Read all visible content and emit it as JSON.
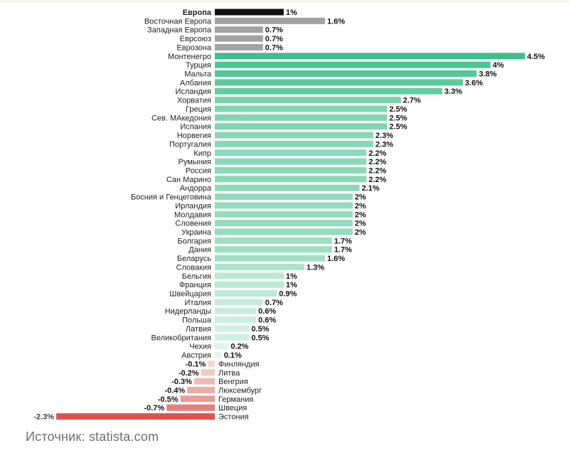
{
  "chart_data": {
    "type": "bar",
    "orientation": "horizontal",
    "categories": [
      "Европа",
      "Восточная Европа",
      "Западная Европа",
      "Еврсоюз",
      "Еврозона",
      "Монтенегро",
      "Турция",
      "Мальта",
      "Албания",
      "Исландия",
      "Хорватия",
      "Греция",
      "Сев. МАкедония",
      "Испания",
      "Норвегия",
      "Португалия",
      "Кипр",
      "Румыния",
      "Россия",
      "Сан Марино",
      "Андорра",
      "Босния и Генцеговина",
      "Ирландия",
      "Молдавия",
      "Словения",
      "Украина",
      "Болгария",
      "Дания",
      "Беларусь",
      "Словакия",
      "Бельгия",
      "Франция",
      "Швейцария",
      "Италия",
      "Нидерланды",
      "Польша",
      "Латвия",
      "Великобритания",
      "Чехия",
      "Австрия",
      "Финляндия",
      "Литва",
      "Венгрия",
      "Люксембург",
      "Германия",
      "Швеция",
      "Эстония"
    ],
    "values": [
      1,
      1.6,
      0.7,
      0.7,
      0.7,
      4.5,
      4,
      3.8,
      3.6,
      3.3,
      2.7,
      2.5,
      2.5,
      2.5,
      2.3,
      2.3,
      2.2,
      2.2,
      2.2,
      2.2,
      2.1,
      2,
      2,
      2,
      2,
      2,
      1.7,
      1.7,
      1.6,
      1.3,
      1,
      1,
      0.9,
      0.7,
      0.6,
      0.6,
      0.5,
      0.5,
      0.2,
      0.1,
      -0.1,
      -0.2,
      -0.3,
      -0.4,
      -0.5,
      -0.7,
      -2.3
    ],
    "value_labels": [
      "1%",
      "1.6%",
      "0.7%",
      "0.7%",
      "0.7%",
      "4.5%",
      "4%",
      "3.8%",
      "3.6%",
      "3.3%",
      "2.7%",
      "2.5%",
      "2.5%",
      "2.5%",
      "2.3%",
      "2.3%",
      "2.2%",
      "2.2%",
      "2.2%",
      "2.2%",
      "2.1%",
      "2%",
      "2%",
      "2%",
      "2%",
      "2%",
      "1.7%",
      "1.7%",
      "1.6%",
      "1.3%",
      "1%",
      "1%",
      "0.9%",
      "0.7%",
      "0.6%",
      "0.6%",
      "0.5%",
      "0.5%",
      "0.2%",
      "0.1%",
      "-0.1%",
      "-0.2%",
      "-0.3%",
      "-0.4%",
      "-0.5%",
      "-0.7%",
      "-2.3%"
    ],
    "title": "",
    "xlabel": "",
    "ylabel": "",
    "xlim": [
      -2.3,
      4.5
    ],
    "grid": false,
    "legend": "none",
    "colors": {
      "europe": "#111111",
      "regions": "#a3a3a3",
      "positive_high": "#3cc08a",
      "positive_low": "#e6f6ee",
      "negative_light": "#f1d9d3",
      "negative_dark": "#e0524f"
    }
  },
  "source": "Источник: statista.com"
}
